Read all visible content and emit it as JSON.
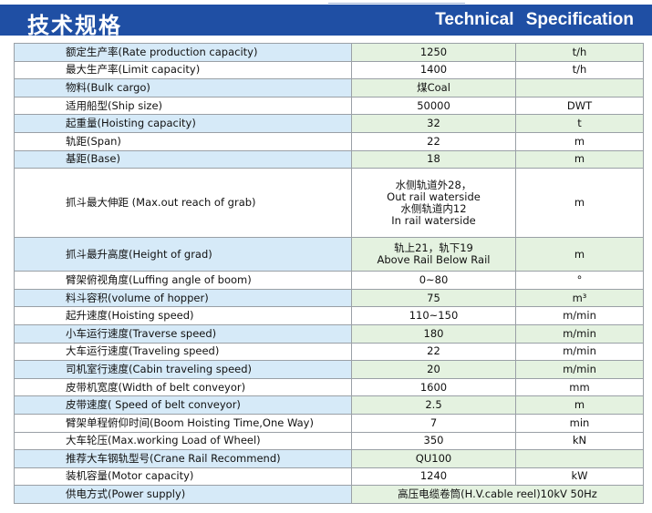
{
  "header": {
    "title_cn": "技术规格",
    "title_en": "Technical  Specification"
  },
  "rows": [
    {
      "name": "额定生产率(Rate production capacity)",
      "value": "1250",
      "unit": "t/h",
      "hl": true
    },
    {
      "name": "最大生产率(Limit capacity)",
      "value": "1400",
      "unit": "t/h",
      "hl": false
    },
    {
      "name": "物料(Bulk cargo)",
      "value": "煤Coal",
      "unit": "",
      "hl": true
    },
    {
      "name": "适用船型(Ship size)",
      "value": "50000",
      "unit": "DWT",
      "hl": false
    },
    {
      "name": "起重量(Hoisting capacity)",
      "value": "32",
      "unit": "t",
      "hl": true
    },
    {
      "name": "轨距(Span)",
      "value": "22",
      "unit": "m",
      "hl": false
    },
    {
      "name": "基距(Base)",
      "value": "18",
      "unit": "m",
      "hl": true
    },
    {
      "name": "抓斗最大伸距       (Max.out reach of grab)",
      "value_lines": [
        "水侧轨道外28，",
        "Out rail waterside",
        "水侧轨道内12",
        "In rail waterside"
      ],
      "unit": "m",
      "hl": false
    },
    {
      "name": "抓斗最升高度(Height of grad)",
      "value_lines": [
        "轨上21，轨下19",
        "Above Rail Below Rail"
      ],
      "unit": "m",
      "hl": true
    },
    {
      "name": "臂架俯视角度(Luffing angle of boom)",
      "value": "0~80",
      "unit": "°",
      "hl": false
    },
    {
      "name": "料斗容积(volume of hopper)",
      "value": "75",
      "unit": "m³",
      "hl": true
    },
    {
      "name": "起升速度(Hoisting speed)",
      "value": "110~150",
      "unit": "m/min",
      "hl": false
    },
    {
      "name": "小车运行速度(Traverse speed)",
      "value": "180",
      "unit": "m/min",
      "hl": true
    },
    {
      "name": "大车运行速度(Traveling speed)",
      "value": "22",
      "unit": "m/min",
      "hl": false
    },
    {
      "name": "司机室行速度(Cabin traveling speed)",
      "value": "20",
      "unit": "m/min",
      "hl": true
    },
    {
      "name": "皮带机宽度(Width of belt conveyor)",
      "value": "1600",
      "unit": "mm",
      "hl": false
    },
    {
      "name": "皮带速度( Speed of belt conveyor)",
      "value": "2.5",
      "unit": "m",
      "hl": true
    },
    {
      "name": "臂架单程俯仰时间(Boom Hoisting Time,One Way)",
      "value": "7",
      "unit": "min",
      "hl": false
    },
    {
      "name": "大车轮压(Max.working Load of Wheel)",
      "value": "350",
      "unit": "kN",
      "hl": false
    },
    {
      "name": "推荐大车钢轨型号(Crane Rail Recommend)",
      "value": "QU100",
      "unit": "",
      "hl": true
    },
    {
      "name": "装机容量(Motor capacity)",
      "value": "1240",
      "unit": "kW",
      "hl": false
    },
    {
      "name": "供电方式(Power supply)",
      "span": "高压电缆卷筒(H.V.cable reel)10kV 50Hz",
      "hl": true
    }
  ]
}
